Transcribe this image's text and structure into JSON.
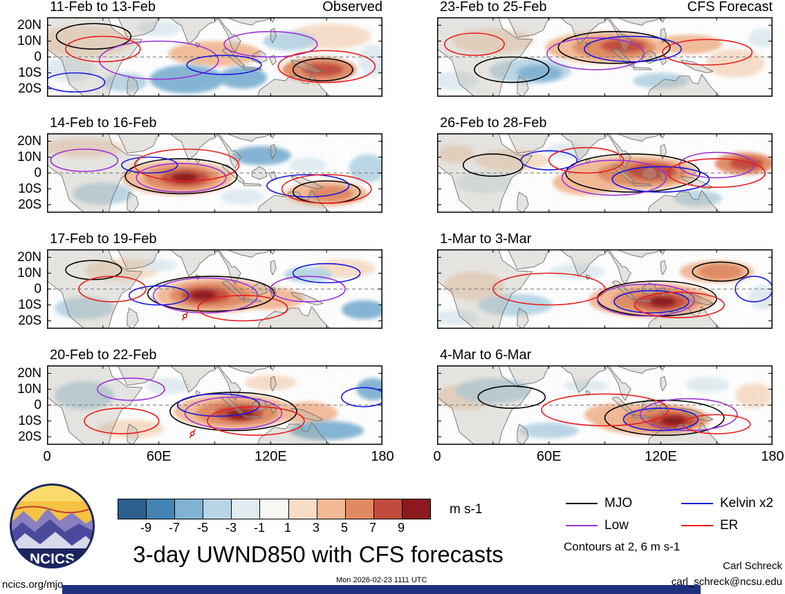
{
  "logo": {
    "text": "NCICS"
  },
  "footer": {
    "url": "ncics.org/mjo",
    "timestamp": "Mon 2026-02-23 1111 UTC",
    "author": "Carl Schreck",
    "email": "carl_schreck@ncsu.edu"
  },
  "chart_data": {
    "type": "heatmap",
    "title": "3-day UWND850 with CFS forecasts",
    "column_headers": [
      "Observed",
      "CFS Forecast"
    ],
    "x_axis": {
      "ticks": [
        "0",
        "60E",
        "120E",
        "180"
      ],
      "lons": [
        0,
        60,
        120,
        180
      ]
    },
    "y_axis": {
      "ticks": [
        "20N",
        "10N",
        "0",
        "10S",
        "20S"
      ],
      "lats": [
        20,
        10,
        0,
        -10,
        -20
      ]
    },
    "colorbar": {
      "labels": [
        "-9",
        "-7",
        "-5",
        "-3",
        "-1",
        "1",
        "3",
        "5",
        "7",
        "9"
      ],
      "colors": [
        "#2b5f8e",
        "#4484b4",
        "#7fb2d3",
        "#b8d5e5",
        "#e0ecf2",
        "#f9f7f3",
        "#f7ddc8",
        "#f2b995",
        "#e08a63",
        "#c14b3c",
        "#8c1a1e"
      ],
      "units": "m s-1"
    },
    "legend": [
      {
        "key": "mjo",
        "label": "MJO",
        "color": "#000000"
      },
      {
        "key": "low",
        "label": "Low",
        "color": "#9b30d6"
      },
      {
        "key": "kelvin",
        "label": "Kelvin x2",
        "color": "#1515e0"
      },
      {
        "key": "er",
        "label": "ER",
        "color": "#e81c1c"
      }
    ],
    "contour_note": "Contours at 2, 6 m s-1",
    "panels": [
      {
        "col": 0,
        "row": 0,
        "title": "11-Feb to 13-Feb",
        "fills": [
          [
            20,
            10,
            26,
            10,
            6
          ],
          [
            90,
            2,
            25,
            8,
            7
          ],
          [
            152,
            13,
            22,
            8,
            6
          ],
          [
            60,
            18,
            12,
            5,
            4
          ],
          [
            12,
            -8,
            14,
            8,
            4
          ],
          [
            75,
            -14,
            20,
            9,
            2
          ],
          [
            42,
            -16,
            12,
            6,
            3
          ],
          [
            105,
            -13,
            13,
            7,
            2
          ],
          [
            130,
            10,
            14,
            6,
            3
          ],
          [
            175,
            -2,
            8,
            10,
            4
          ],
          [
            146,
            -8,
            20,
            8,
            8
          ],
          [
            148,
            -8,
            11,
            4,
            9
          ]
        ],
        "contours": [
          [
            25,
            13,
            20,
            8,
            "mjo"
          ],
          [
            148,
            -8,
            16,
            7,
            "mjo"
          ],
          [
            60,
            -2,
            32,
            12,
            "low"
          ],
          [
            120,
            8,
            25,
            8,
            "low"
          ],
          [
            15,
            -16,
            16,
            6,
            "kelvin"
          ],
          [
            95,
            -5,
            20,
            6,
            "kelvin"
          ],
          [
            150,
            -6,
            26,
            10,
            "er"
          ],
          [
            30,
            5,
            20,
            8,
            "er"
          ]
        ]
      },
      {
        "col": 0,
        "row": 1,
        "title": "14-Feb to 16-Feb",
        "fills": [
          [
            20,
            16,
            22,
            6,
            6
          ],
          [
            70,
            -3,
            30,
            11,
            7
          ],
          [
            150,
            -13,
            22,
            8,
            7
          ],
          [
            30,
            -13,
            16,
            7,
            3
          ],
          [
            115,
            11,
            16,
            6,
            2
          ],
          [
            140,
            5,
            10,
            5,
            4
          ],
          [
            172,
            3,
            10,
            9,
            3
          ],
          [
            105,
            -15,
            12,
            5,
            4
          ],
          [
            72,
            -3,
            20,
            8,
            8
          ],
          [
            152,
            -13,
            12,
            5,
            8
          ],
          [
            74,
            -3,
            13,
            5,
            9
          ],
          [
            74,
            -3,
            7,
            3,
            10
          ]
        ],
        "contours": [
          [
            72,
            -2,
            30,
            11,
            "mjo"
          ],
          [
            150,
            -12,
            18,
            7,
            "mjo"
          ],
          [
            72,
            -3,
            24,
            9,
            "low"
          ],
          [
            20,
            8,
            18,
            7,
            "low"
          ],
          [
            140,
            -8,
            22,
            7,
            "kelvin"
          ],
          [
            55,
            5,
            15,
            5,
            "kelvin"
          ],
          [
            150,
            -10,
            24,
            9,
            "er"
          ],
          [
            75,
            5,
            28,
            10,
            "er"
          ]
        ]
      },
      {
        "col": 0,
        "row": 2,
        "title": "17-Feb to 19-Feb",
        "fills": [
          [
            40,
            12,
            20,
            7,
            6
          ],
          [
            90,
            -4,
            32,
            11,
            7
          ],
          [
            120,
            -6,
            18,
            7,
            7
          ],
          [
            160,
            13,
            16,
            6,
            6
          ],
          [
            20,
            -12,
            16,
            7,
            3
          ],
          [
            140,
            9,
            13,
            5,
            3
          ],
          [
            170,
            -13,
            12,
            6,
            2
          ],
          [
            60,
            15,
            10,
            4,
            4
          ],
          [
            88,
            -4,
            22,
            8,
            8
          ],
          [
            85,
            -4,
            13,
            5,
            9
          ],
          [
            84,
            -4,
            7,
            3,
            10
          ]
        ],
        "contours": [
          [
            88,
            -3,
            34,
            11,
            "mjo"
          ],
          [
            25,
            12,
            15,
            6,
            "mjo"
          ],
          [
            85,
            -4,
            28,
            11,
            "low"
          ],
          [
            140,
            0,
            20,
            8,
            "low"
          ],
          [
            60,
            -4,
            16,
            6,
            "kelvin"
          ],
          [
            150,
            10,
            18,
            6,
            "kelvin"
          ],
          [
            105,
            -12,
            24,
            8,
            "er"
          ],
          [
            35,
            0,
            18,
            8,
            "er"
          ]
        ],
        "cyclone": [
          74,
          -17
        ]
      },
      {
        "col": 0,
        "row": 3,
        "title": "20-Feb to 22-Feb",
        "fills": [
          [
            45,
            -15,
            18,
            6,
            6
          ],
          [
            100,
            -4,
            32,
            11,
            7
          ],
          [
            140,
            -5,
            16,
            7,
            7
          ],
          [
            20,
            6,
            16,
            9,
            3
          ],
          [
            65,
            12,
            12,
            5,
            4
          ],
          [
            150,
            -16,
            20,
            6,
            2
          ],
          [
            175,
            10,
            9,
            7,
            2
          ],
          [
            120,
            14,
            14,
            5,
            6
          ],
          [
            102,
            -5,
            22,
            8,
            8
          ],
          [
            103,
            -5,
            13,
            5,
            9
          ],
          [
            104,
            -6,
            7,
            3,
            10
          ]
        ],
        "contours": [
          [
            100,
            -4,
            34,
            12,
            "mjo"
          ],
          [
            100,
            -5,
            26,
            10,
            "low"
          ],
          [
            45,
            10,
            18,
            7,
            "low"
          ],
          [
            92,
            0,
            22,
            7,
            "kelvin"
          ],
          [
            170,
            5,
            12,
            6,
            "kelvin"
          ],
          [
            112,
            -10,
            26,
            9,
            "er"
          ],
          [
            40,
            -10,
            20,
            8,
            "er"
          ]
        ],
        "cyclone": [
          78,
          -18
        ]
      },
      {
        "col": 1,
        "row": 0,
        "title": "23-Feb to 25-Feb",
        "fills": [
          [
            30,
            10,
            22,
            8,
            6
          ],
          [
            90,
            6,
            32,
            10,
            7
          ],
          [
            135,
            8,
            18,
            6,
            7
          ],
          [
            160,
            -4,
            16,
            9,
            6
          ],
          [
            50,
            -9,
            22,
            8,
            3
          ],
          [
            55,
            -10,
            12,
            5,
            2
          ],
          [
            120,
            -15,
            15,
            5,
            3
          ],
          [
            10,
            -15,
            12,
            6,
            4
          ],
          [
            175,
            12,
            8,
            6,
            4
          ],
          [
            95,
            6,
            22,
            7,
            8
          ],
          [
            100,
            7,
            12,
            4,
            9
          ]
        ],
        "contours": [
          [
            95,
            6,
            30,
            10,
            "mjo"
          ],
          [
            40,
            -8,
            20,
            8,
            "mjo"
          ],
          [
            85,
            2,
            26,
            10,
            "low"
          ],
          [
            105,
            5,
            26,
            8,
            "kelvin"
          ],
          [
            145,
            3,
            24,
            8,
            "er"
          ],
          [
            20,
            8,
            16,
            7,
            "er"
          ]
        ]
      },
      {
        "col": 1,
        "row": 1,
        "title": "26-Feb to 28-Feb",
        "fills": [
          [
            40,
            8,
            20,
            7,
            6
          ],
          [
            105,
            0,
            35,
            11,
            7
          ],
          [
            80,
            -6,
            18,
            8,
            7
          ],
          [
            25,
            -6,
            15,
            7,
            4
          ],
          [
            140,
            -16,
            13,
            5,
            3
          ],
          [
            70,
            14,
            12,
            5,
            4
          ],
          [
            10,
            12,
            10,
            6,
            6
          ],
          [
            110,
            0,
            24,
            8,
            8
          ],
          [
            165,
            6,
            16,
            7,
            8
          ],
          [
            115,
            1,
            13,
            5,
            9
          ],
          [
            166,
            6,
            9,
            4,
            9
          ]
        ],
        "contours": [
          [
            105,
            0,
            36,
            12,
            "mjo"
          ],
          [
            30,
            5,
            16,
            7,
            "mjo"
          ],
          [
            95,
            -3,
            28,
            11,
            "low"
          ],
          [
            150,
            5,
            20,
            8,
            "low"
          ],
          [
            120,
            -4,
            26,
            8,
            "kelvin"
          ],
          [
            60,
            8,
            15,
            6,
            "kelvin"
          ],
          [
            150,
            0,
            26,
            9,
            "er"
          ],
          [
            80,
            8,
            20,
            8,
            "er"
          ]
        ]
      },
      {
        "col": 1,
        "row": 2,
        "title": "1-Mar to 3-Mar",
        "fills": [
          [
            20,
            2,
            16,
            9,
            6
          ],
          [
            115,
            -7,
            34,
            11,
            7
          ],
          [
            150,
            11,
            20,
            7,
            7
          ],
          [
            42,
            -10,
            20,
            7,
            3
          ],
          [
            75,
            11,
            15,
            5,
            4
          ],
          [
            10,
            -18,
            12,
            5,
            4
          ],
          [
            175,
            -5,
            8,
            8,
            4
          ],
          [
            118,
            -7,
            24,
            8,
            8
          ],
          [
            152,
            11,
            12,
            5,
            8
          ],
          [
            120,
            -8,
            14,
            5,
            9
          ],
          [
            121,
            -8,
            7,
            3,
            10
          ]
        ],
        "contours": [
          [
            118,
            -6,
            32,
            11,
            "mjo"
          ],
          [
            152,
            11,
            15,
            6,
            "mjo"
          ],
          [
            112,
            -7,
            26,
            10,
            "low"
          ],
          [
            115,
            -8,
            20,
            7,
            "kelvin"
          ],
          [
            170,
            0,
            10,
            8,
            "kelvin"
          ],
          [
            60,
            0,
            30,
            10,
            "er"
          ],
          [
            130,
            -10,
            24,
            8,
            "er"
          ]
        ]
      },
      {
        "col": 1,
        "row": 3,
        "title": "4-Mar to 6-Mar",
        "fills": [
          [
            15,
            5,
            16,
            8,
            6
          ],
          [
            115,
            -9,
            32,
            10,
            7
          ],
          [
            95,
            -6,
            16,
            7,
            7
          ],
          [
            170,
            6,
            10,
            8,
            6
          ],
          [
            30,
            9,
            20,
            8,
            3
          ],
          [
            60,
            -16,
            16,
            5,
            3
          ],
          [
            145,
            13,
            12,
            5,
            4
          ],
          [
            80,
            12,
            12,
            4,
            4
          ],
          [
            122,
            -9,
            22,
            8,
            8
          ],
          [
            126,
            -10,
            13,
            5,
            9
          ],
          [
            127,
            -10,
            7,
            3,
            10
          ]
        ],
        "contours": [
          [
            122,
            -8,
            32,
            11,
            "mjo"
          ],
          [
            40,
            5,
            18,
            7,
            "mjo"
          ],
          [
            135,
            -6,
            26,
            10,
            "low"
          ],
          [
            120,
            -9,
            20,
            7,
            "kelvin"
          ],
          [
            90,
            -3,
            34,
            10,
            "er"
          ],
          [
            150,
            -12,
            18,
            6,
            "er"
          ]
        ]
      }
    ]
  }
}
